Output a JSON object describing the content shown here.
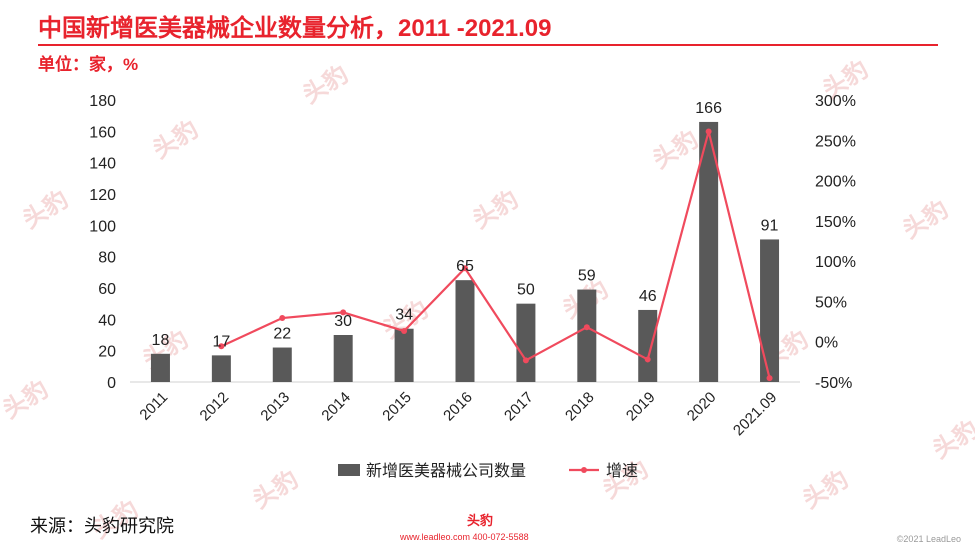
{
  "header": {
    "title": "中国新增医美器械企业数量分析，2011 -2021.09",
    "unit": "单位：家，%"
  },
  "brand": {
    "watermark_text": "头豹",
    "logo_text": "头豹",
    "contact": "www.leadleo.com  400-072-5588",
    "copyright": "©2021 LeadLeo",
    "accent_color": "#e8232d"
  },
  "footer": {
    "source": "来源：头豹研究院"
  },
  "chart_data": {
    "type": "bar",
    "categories": [
      "2011",
      "2012",
      "2013",
      "2014",
      "2015",
      "2016",
      "2017",
      "2018",
      "2019",
      "2020",
      "2021.09"
    ],
    "series": [
      {
        "name": "新增医美器械公司数量",
        "type": "bar",
        "axis": "left",
        "color": "#595959",
        "values": [
          18,
          17,
          22,
          30,
          34,
          65,
          50,
          59,
          46,
          166,
          91
        ]
      },
      {
        "name": "增速",
        "type": "line",
        "axis": "right",
        "color": "#f04a5d",
        "values": [
          null,
          -5.6,
          29.4,
          36.4,
          13.3,
          91.2,
          -23.1,
          18.0,
          -22.0,
          260.9,
          -45.2
        ]
      }
    ],
    "y_left": {
      "ylim": [
        0,
        180
      ],
      "ticks": [
        "0",
        "20",
        "40",
        "60",
        "80",
        "100",
        "120",
        "140",
        "160",
        "180"
      ]
    },
    "y_right": {
      "ylim": [
        -50,
        300
      ],
      "ticks": [
        "-50%",
        "0%",
        "50%",
        "100%",
        "150%",
        "200%",
        "250%",
        "300%"
      ]
    },
    "data_labels": [
      "18",
      "17",
      "22",
      "30",
      "34",
      "65",
      "50",
      "59",
      "46",
      "166",
      "91"
    ],
    "legend_position": "bottom",
    "grid": false
  }
}
